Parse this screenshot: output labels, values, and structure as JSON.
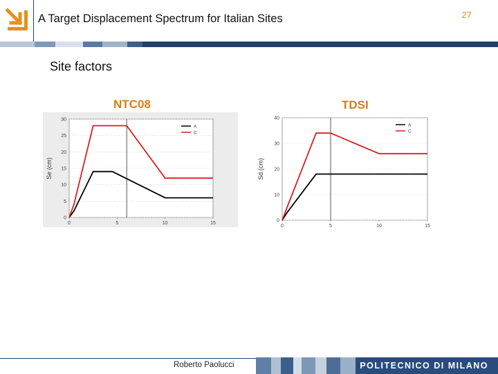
{
  "header": {
    "title": "A Target Displacement Spectrum for Italian Sites",
    "page_number": "27"
  },
  "section_title": "Site factors",
  "footer": {
    "author": "Roberto Paolucci",
    "institution": "POLITECNICO DI MILANO"
  },
  "colors": {
    "accent_orange": "#d67d18",
    "brand_blue": "#1f3f6d",
    "series_A": "#000000",
    "series_C": "#d42020"
  },
  "chart_data": [
    {
      "type": "line",
      "title": "NTC08",
      "ylabel": "Se (cm)",
      "xlabel": "",
      "xlim": [
        0,
        15
      ],
      "ylim": [
        0,
        30
      ],
      "xticks": [
        "0",
        "5",
        "10",
        "15"
      ],
      "yticks": [
        "0",
        "5",
        "10",
        "15",
        "20",
        "25",
        "30"
      ],
      "legend": "top-right",
      "vlines": [
        6
      ],
      "series": [
        {
          "name": "A",
          "color": "#000000",
          "x": [
            0,
            0.5,
            2.5,
            4.5,
            10,
            15
          ],
          "y": [
            0,
            2,
            14,
            14,
            6,
            6
          ]
        },
        {
          "name": "C",
          "color": "#d42020",
          "x": [
            0,
            0.5,
            2.5,
            6,
            10,
            15
          ],
          "y": [
            0,
            4,
            28,
            28,
            12,
            12
          ]
        }
      ]
    },
    {
      "type": "line",
      "title": "TDSI",
      "ylabel": "Sd (cm)",
      "xlabel": "",
      "xlim": [
        0,
        15
      ],
      "ylim": [
        0,
        40
      ],
      "xticks": [
        "0",
        "5",
        "10",
        "15"
      ],
      "yticks": [
        "0",
        "10",
        "20",
        "30",
        "40"
      ],
      "legend": "top-right",
      "vlines": [
        5
      ],
      "series": [
        {
          "name": "A",
          "color": "#000000",
          "x": [
            0,
            0.5,
            3.5,
            15
          ],
          "y": [
            0,
            3,
            18,
            18
          ]
        },
        {
          "name": "C",
          "color": "#d42020",
          "x": [
            0,
            0.5,
            3.5,
            5,
            10,
            15
          ],
          "y": [
            0,
            5,
            34,
            34,
            26,
            26
          ]
        }
      ]
    }
  ]
}
